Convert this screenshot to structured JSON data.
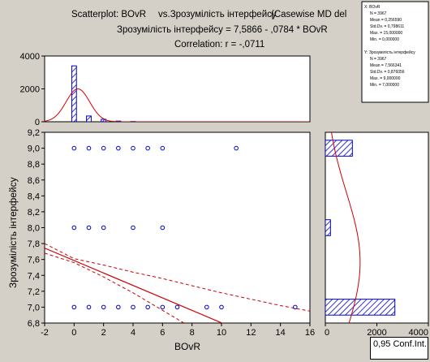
{
  "titles": {
    "line1_left": "Scatterplot: BOvR",
    "line1_mid": "vs.Зрозумілість інтерфейсу",
    "line1_right": "(Casewise MD del",
    "line2": "Зрозумілість інтерфейсу = 7,5866 - ,0784  * BOvR",
    "line3": "Correlation: r = -,0711"
  },
  "legend": {
    "x_block": [
      "X:  BOvR",
      "N = 3967",
      "Mean = 0,256590",
      "Std.Dv. = 0,798611",
      "Max. = 15,000000",
      "Min. = 0,000000"
    ],
    "y_block": [
      "Y:  Зрозумілість інтерфейсу",
      "N = 3967",
      "Mean = 7,566341",
      "Std.Dv. = 0,876056",
      "Max. = 9,000000",
      "Min. = 7,000000"
    ]
  },
  "conf_label": "0,95 Conf.Int.",
  "colors": {
    "background": "#d4d0c8",
    "plot_bg": "#ffffff",
    "series": "#0000cc",
    "fit_line": "#cc0000"
  },
  "chart_data": [
    {
      "type": "scatter",
      "name": "main-scatter",
      "xlabel": "BOvR",
      "ylabel": "Зрозумілість інтерфейсу",
      "xlim": [
        -2,
        16
      ],
      "ylim": [
        6.8,
        9.2
      ],
      "x_ticks": [
        "-2",
        "0",
        "2",
        "4",
        "6",
        "8",
        "10",
        "12",
        "14",
        "16"
      ],
      "y_ticks": [
        "6,8",
        "7,0",
        "7,2",
        "7,4",
        "7,6",
        "7,8",
        "8,0",
        "8,2",
        "8,4",
        "8,6",
        "8,8",
        "9,0",
        "9,2"
      ],
      "points": [
        [
          0,
          9
        ],
        [
          1,
          9
        ],
        [
          2,
          9
        ],
        [
          3,
          9
        ],
        [
          4,
          9
        ],
        [
          5,
          9
        ],
        [
          6,
          9
        ],
        [
          11,
          9
        ],
        [
          0,
          8
        ],
        [
          1,
          8
        ],
        [
          2,
          8
        ],
        [
          4,
          8
        ],
        [
          6,
          8
        ],
        [
          0,
          7
        ],
        [
          1,
          7
        ],
        [
          2,
          7
        ],
        [
          3,
          7
        ],
        [
          4,
          7
        ],
        [
          5,
          7
        ],
        [
          6,
          7
        ],
        [
          7,
          7
        ],
        [
          9,
          7
        ],
        [
          10,
          7
        ],
        [
          15,
          7
        ]
      ],
      "regression": {
        "intercept": 7.5866,
        "slope": -0.0784
      },
      "confidence_band": {
        "lower": [
          [
            -2,
            7.68
          ],
          [
            0,
            7.56
          ],
          [
            2,
            7.38
          ],
          [
            4,
            7.18
          ],
          [
            6,
            6.96
          ],
          [
            8,
            6.74
          ]
        ],
        "upper": [
          [
            -2,
            7.8
          ],
          [
            0,
            7.61
          ],
          [
            2,
            7.53
          ],
          [
            4,
            7.44
          ],
          [
            6,
            7.36
          ],
          [
            8,
            7.27
          ],
          [
            10,
            7.18
          ],
          [
            12,
            7.1
          ],
          [
            14,
            7.02
          ],
          [
            16,
            6.95
          ]
        ]
      }
    },
    {
      "type": "bar",
      "name": "x-histogram",
      "xlim": [
        -2,
        16
      ],
      "ylim": [
        0,
        4000
      ],
      "y_ticks": [
        "0",
        "2000",
        "4000"
      ],
      "bins": [
        {
          "x": 0,
          "count": 3400
        },
        {
          "x": 1,
          "count": 350
        },
        {
          "x": 2,
          "count": 150
        },
        {
          "x": 3,
          "count": 40
        },
        {
          "x": 4,
          "count": 15
        }
      ],
      "normal_curve": {
        "mean": 0.2566,
        "sd": 0.7986,
        "peak": 2000
      }
    },
    {
      "type": "bar",
      "name": "y-histogram",
      "orientation": "horizontal",
      "ylim": [
        6.8,
        9.2
      ],
      "xlim": [
        0,
        4000
      ],
      "x_ticks": [
        "0",
        "2000",
        "4000"
      ],
      "bins": [
        {
          "y": 7,
          "count": 2700
        },
        {
          "y": 8,
          "count": 200
        },
        {
          "y": 9,
          "count": 1050
        }
      ],
      "normal_curve": {
        "mean": 7.5663,
        "sd": 0.8761,
        "peak": 1350
      }
    }
  ]
}
